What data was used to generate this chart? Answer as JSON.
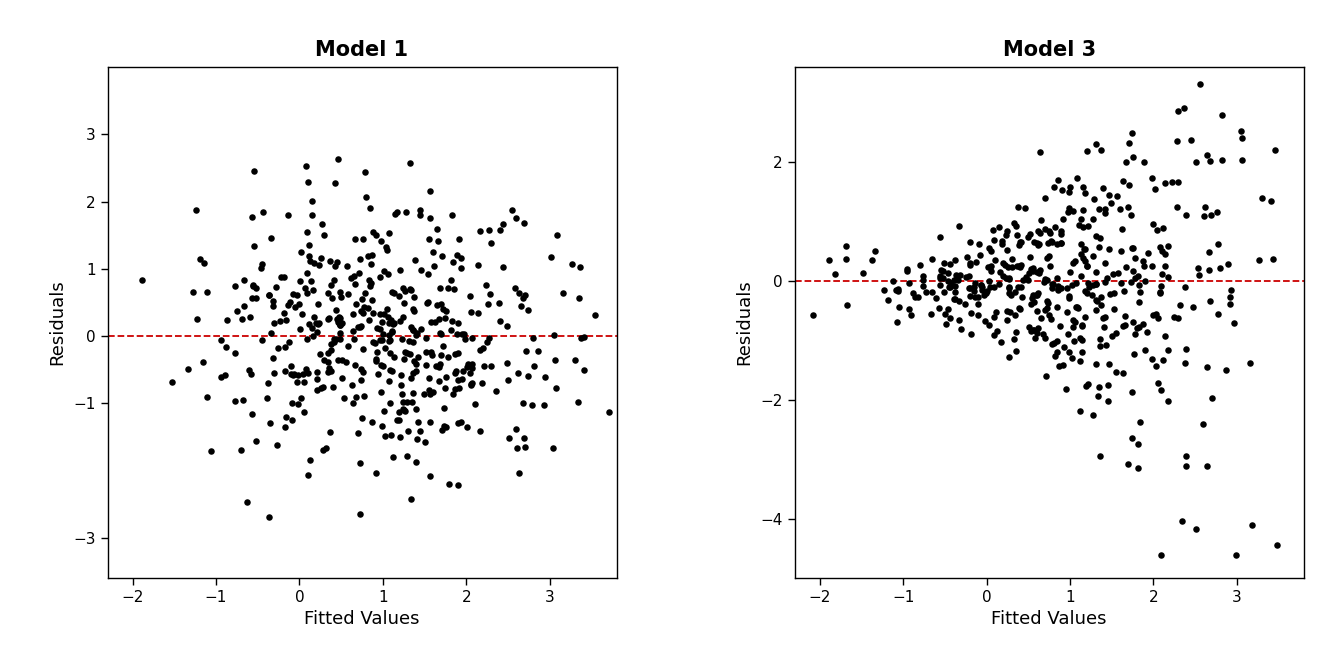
{
  "title1": "Model 1",
  "title2": "Model 3",
  "xlabel": "Fitted Values",
  "ylabel": "Residuals",
  "xlim": [
    -2.3,
    3.8
  ],
  "ylim1": [
    -3.6,
    4.0
  ],
  "ylim2": [
    -5.0,
    3.6
  ],
  "xticks": [
    -2,
    -1,
    0,
    1,
    2,
    3
  ],
  "yticks1": [
    -3,
    -1,
    0,
    1,
    2,
    3
  ],
  "yticks2": [
    -4,
    -2,
    0,
    2
  ],
  "dot_color": "#000000",
  "dot_size": 22,
  "line_color": "#cc0000",
  "line_style": "--",
  "line_width": 1.3,
  "background_color": "#ffffff",
  "title_fontsize": 15,
  "label_fontsize": 13,
  "tick_fontsize": 11,
  "seed1": 42,
  "seed2": 123,
  "n_points": 500
}
